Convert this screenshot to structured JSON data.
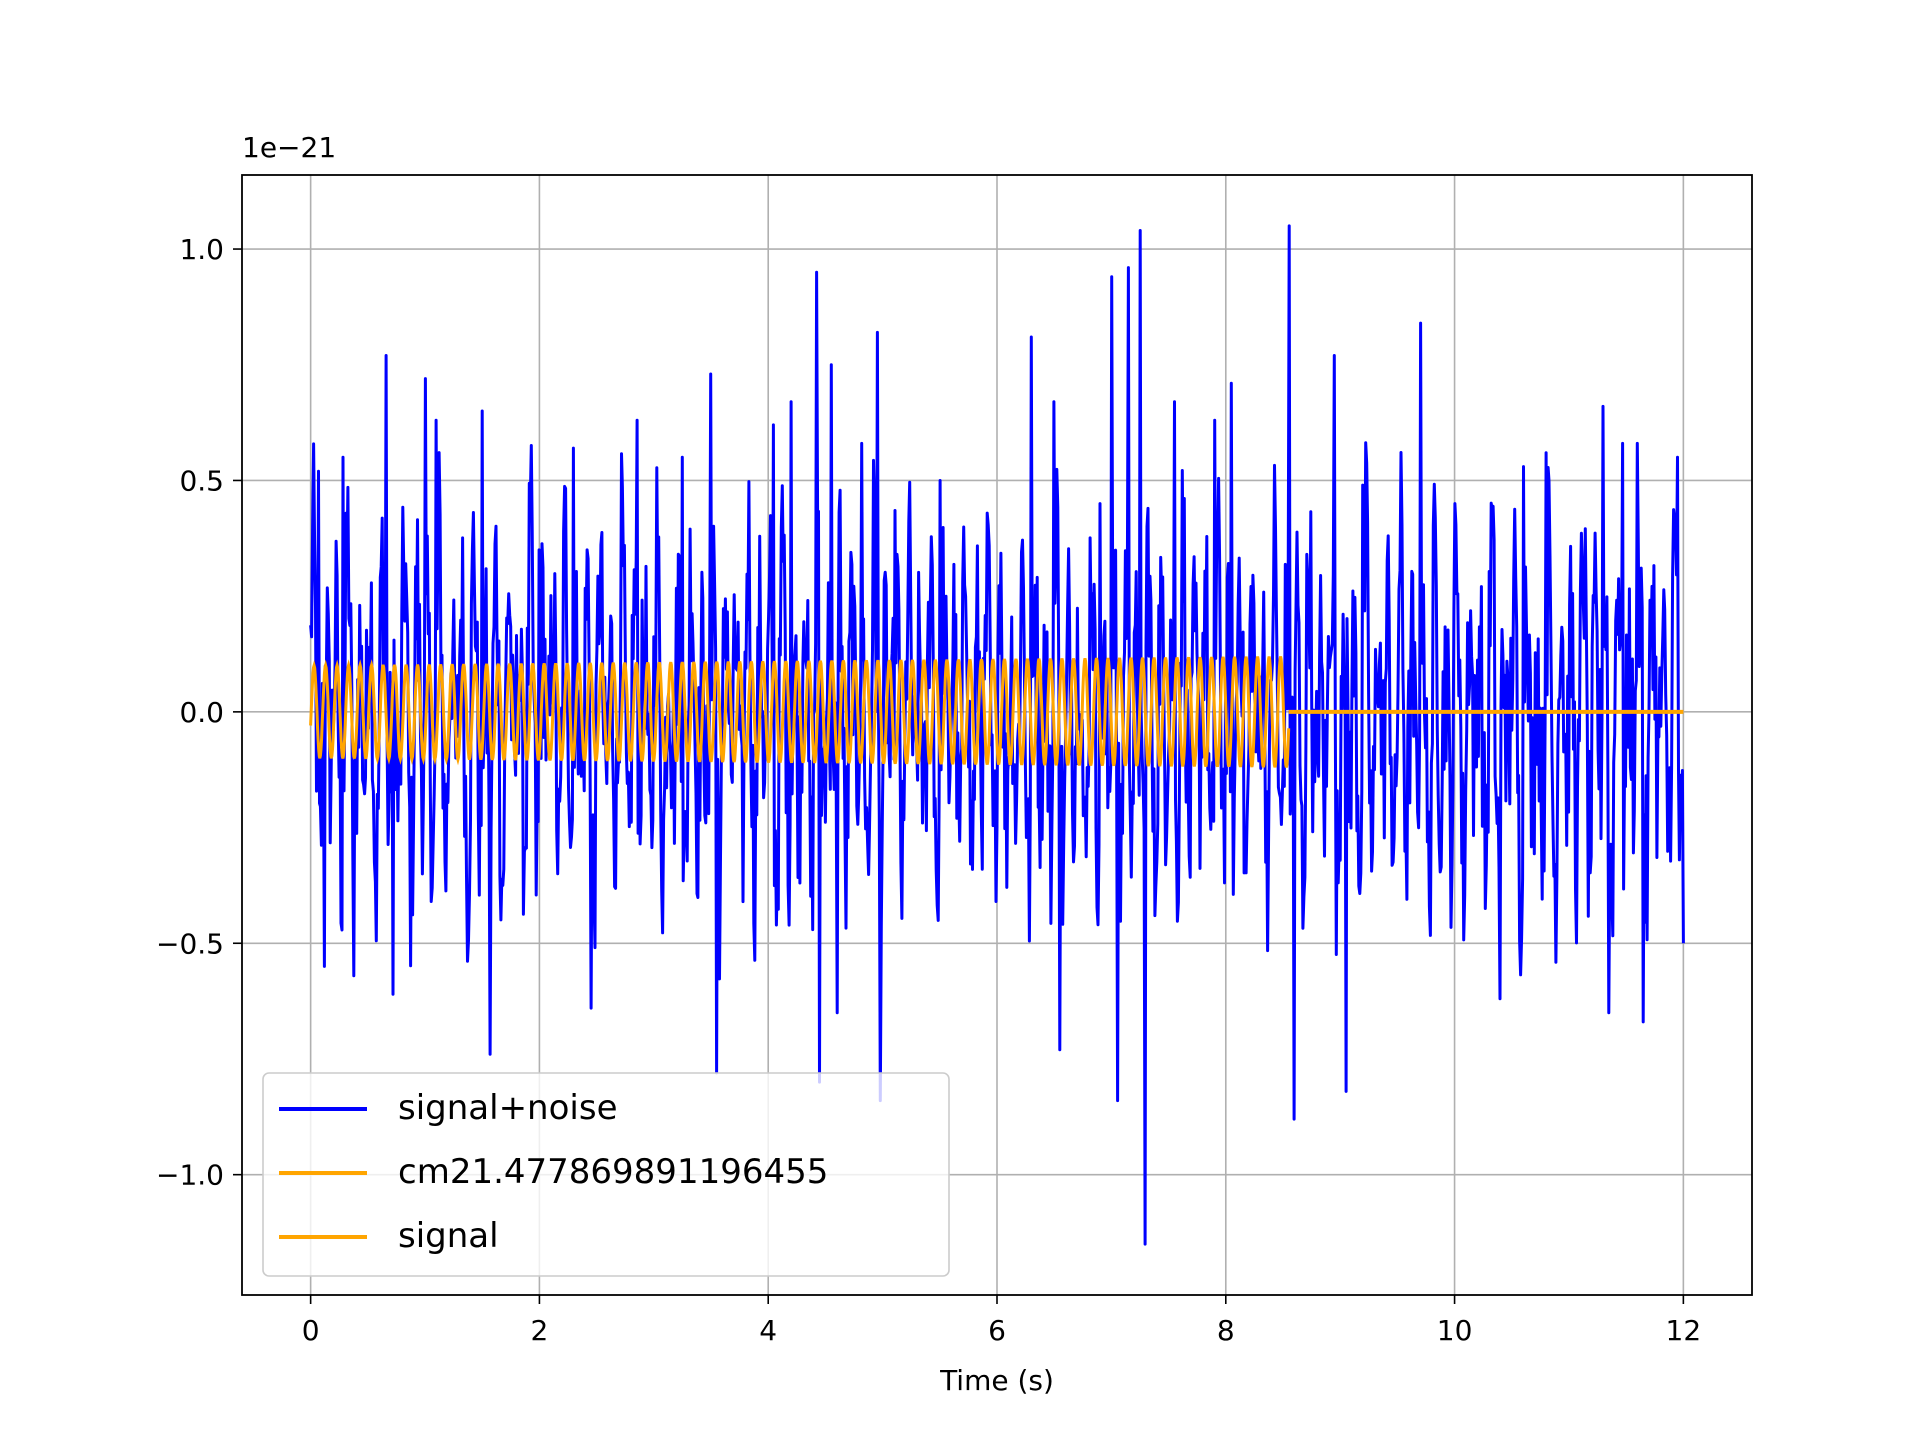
{
  "chart_data": {
    "type": "line",
    "title": "",
    "xlabel": "Time (s)",
    "ylabel": "",
    "y_offset_label": "1e−21",
    "xlim": [
      -0.6,
      12.6
    ],
    "ylim": [
      -1.26,
      1.16
    ],
    "x_ticks": [
      0,
      2,
      4,
      6,
      8,
      10,
      12
    ],
    "x_tick_labels": [
      "0",
      "2",
      "4",
      "6",
      "8",
      "10",
      "12"
    ],
    "y_ticks": [
      -1.0,
      -0.5,
      0.0,
      0.5,
      1.0
    ],
    "y_tick_labels": [
      "−1.0",
      "−0.5",
      "0.0",
      "0.5",
      "1.0"
    ],
    "grid": true,
    "legend_position": "lower-left",
    "series": [
      {
        "name": "signal+noise",
        "color": "#0000ff",
        "x_range": [
          0,
          12
        ],
        "description_values": {
          "max": 1.05,
          "min": -1.15
        },
        "peaks": [
          [
            0.07,
            0.52
          ],
          [
            0.12,
            -0.55
          ],
          [
            0.28,
            0.55
          ],
          [
            0.38,
            -0.57
          ],
          [
            0.66,
            0.77
          ],
          [
            0.72,
            -0.61
          ],
          [
            1.0,
            0.72
          ],
          [
            1.1,
            0.63
          ],
          [
            1.5,
            0.65
          ],
          [
            1.57,
            -0.74
          ],
          [
            2.0,
            0.35
          ],
          [
            2.3,
            0.57
          ],
          [
            2.45,
            -0.64
          ],
          [
            2.85,
            0.63
          ],
          [
            3.25,
            0.55
          ],
          [
            3.5,
            0.73
          ],
          [
            3.55,
            -0.78
          ],
          [
            4.05,
            0.62
          ],
          [
            4.2,
            0.67
          ],
          [
            4.42,
            0.95
          ],
          [
            4.45,
            -0.8
          ],
          [
            4.55,
            0.75
          ],
          [
            4.6,
            -0.65
          ],
          [
            4.82,
            0.58
          ],
          [
            4.95,
            0.82
          ],
          [
            4.98,
            -0.84
          ],
          [
            5.5,
            0.5
          ],
          [
            6.3,
            0.81
          ],
          [
            6.5,
            0.67
          ],
          [
            6.55,
            -0.73
          ],
          [
            6.9,
            0.45
          ],
          [
            7.0,
            0.94
          ],
          [
            7.05,
            -0.84
          ],
          [
            7.15,
            0.96
          ],
          [
            7.25,
            1.04
          ],
          [
            7.29,
            -1.15
          ],
          [
            7.55,
            0.67
          ],
          [
            7.9,
            0.63
          ],
          [
            8.05,
            0.71
          ],
          [
            8.55,
            1.05
          ],
          [
            8.6,
            -0.88
          ],
          [
            8.95,
            0.77
          ],
          [
            9.05,
            -0.82
          ],
          [
            9.2,
            0.49
          ],
          [
            9.7,
            0.84
          ],
          [
            10.0,
            0.45
          ],
          [
            10.4,
            -0.62
          ],
          [
            10.6,
            0.53
          ],
          [
            10.8,
            0.56
          ],
          [
            11.3,
            0.66
          ],
          [
            11.35,
            -0.65
          ],
          [
            11.47,
            0.58
          ],
          [
            11.6,
            0.58
          ],
          [
            11.65,
            -0.67
          ],
          [
            11.95,
            0.55
          ],
          [
            12.0,
            -0.5
          ]
        ]
      },
      {
        "name": "cm21.477869891196455",
        "color": "#ffa500",
        "x_range": [
          0,
          8.55
        ],
        "amplitude_start": 0.1,
        "amplitude_end": 0.12,
        "cycles": 85
      },
      {
        "name": "signal",
        "color": "#ffa500",
        "x_range": [
          8.55,
          12
        ],
        "value": 0.0
      }
    ]
  }
}
